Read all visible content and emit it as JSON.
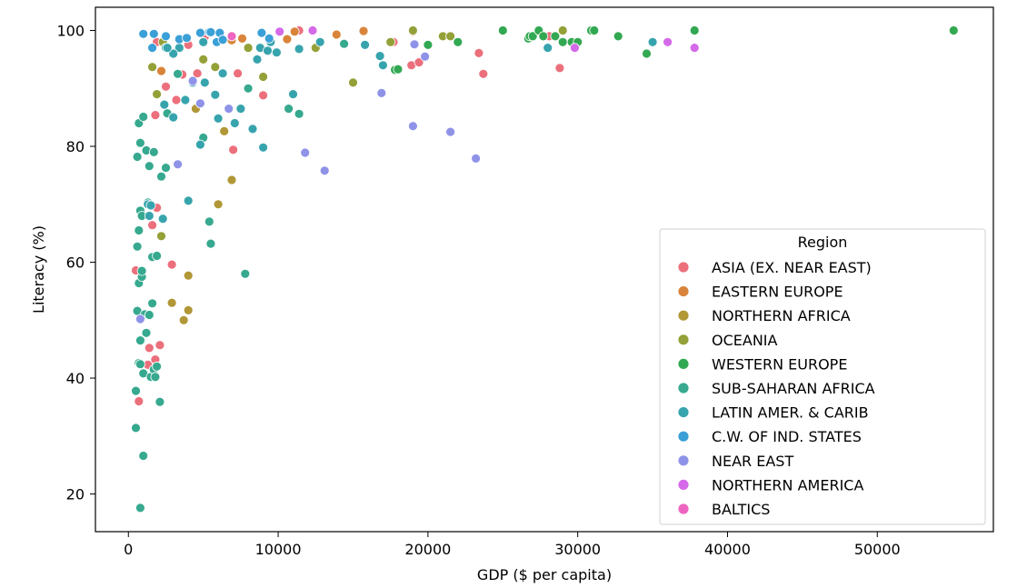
{
  "chart_data": {
    "type": "scatter",
    "title": "",
    "xlabel": "GDP ($ per capita)",
    "ylabel": "Literacy (%)",
    "xlim": [
      -2200,
      57750
    ],
    "ylim": [
      13.5,
      104.0
    ],
    "xticks": [
      0,
      10000,
      20000,
      30000,
      40000,
      50000
    ],
    "yticks": [
      20,
      40,
      60,
      80,
      100
    ],
    "grid": false,
    "legend": {
      "title": "Region",
      "placement": "lower-right"
    },
    "series": [
      {
        "name": "ASIA (EX. NEAR EAST)",
        "color": "#ec6f7c",
        "points": [
          [
            500,
            58.6
          ],
          [
            700,
            36.0
          ],
          [
            1300,
            42.3
          ],
          [
            1400,
            45.2
          ],
          [
            1600,
            66.4
          ],
          [
            1800,
            43.2
          ],
          [
            1800,
            85.4
          ],
          [
            1900,
            69.4
          ],
          [
            2100,
            45.7
          ],
          [
            2500,
            90.3
          ],
          [
            2900,
            59.6
          ],
          [
            3200,
            88.0
          ],
          [
            3600,
            92.4
          ],
          [
            4000,
            97.5
          ],
          [
            4600,
            92.6
          ],
          [
            5100,
            98.9
          ],
          [
            7000,
            79.4
          ],
          [
            7300,
            92.6
          ],
          [
            9000,
            88.8
          ],
          [
            11400,
            100.0
          ],
          [
            17700,
            98.0
          ],
          [
            18900,
            94.0
          ],
          [
            19400,
            94.5
          ],
          [
            23400,
            96.1
          ],
          [
            23700,
            92.5
          ],
          [
            28100,
            99.0
          ],
          [
            28800,
            93.5
          ],
          [
            1900,
            98.0
          ]
        ]
      },
      {
        "name": "EASTERN EUROPE",
        "color": "#d9843a",
        "points": [
          [
            4500,
            86.6
          ],
          [
            7600,
            98.6
          ],
          [
            10600,
            98.5
          ],
          [
            11100,
            99.8
          ],
          [
            13900,
            99.3
          ],
          [
            15700,
            99.9
          ],
          [
            19000,
            99.8
          ],
          [
            2200,
            93.0
          ],
          [
            6900,
            98.3
          ]
        ]
      },
      {
        "name": "NORTHERN AFRICA",
        "color": "#b19736",
        "points": [
          [
            3700,
            50.0
          ],
          [
            4000,
            51.7
          ],
          [
            4000,
            57.7
          ],
          [
            6000,
            70.0
          ],
          [
            6400,
            82.6
          ],
          [
            6900,
            74.2
          ],
          [
            2900,
            53.0
          ],
          [
            4500,
            86.5
          ]
        ]
      },
      {
        "name": "OCEANIA",
        "color": "#94a038",
        "points": [
          [
            1600,
            93.7
          ],
          [
            1900,
            89.0
          ],
          [
            2200,
            64.5
          ],
          [
            2300,
            98.0
          ],
          [
            5000,
            95.0
          ],
          [
            5800,
            93.7
          ],
          [
            8000,
            97.0
          ],
          [
            9000,
            92.0
          ],
          [
            12500,
            97.0
          ],
          [
            15000,
            91.0
          ],
          [
            17500,
            98.0
          ],
          [
            19000,
            100.0
          ],
          [
            21000,
            99.0
          ],
          [
            21500,
            99.0
          ],
          [
            29000,
            100.0
          ]
        ]
      },
      {
        "name": "WESTERN EUROPE",
        "color": "#33a852",
        "points": [
          [
            17800,
            93.2
          ],
          [
            18000,
            93.3
          ],
          [
            20000,
            97.5
          ],
          [
            22000,
            98.0
          ],
          [
            25000,
            100.0
          ],
          [
            26700,
            98.6
          ],
          [
            26800,
            99.0
          ],
          [
            27000,
            99.0
          ],
          [
            27400,
            100.0
          ],
          [
            27700,
            99.0
          ],
          [
            28500,
            99.0
          ],
          [
            29000,
            98.0
          ],
          [
            29600,
            98.0
          ],
          [
            30000,
            98.0
          ],
          [
            30900,
            100.0
          ],
          [
            31100,
            100.0
          ],
          [
            32700,
            99.0
          ],
          [
            34600,
            96.0
          ],
          [
            37800,
            100.0
          ],
          [
            55100,
            100.0
          ]
        ]
      },
      {
        "name": "SUB-SAHARAN AFRICA",
        "color": "#36a98f",
        "points": [
          [
            500,
            31.4
          ],
          [
            500,
            37.8
          ],
          [
            600,
            51.6
          ],
          [
            600,
            62.7
          ],
          [
            600,
            78.2
          ],
          [
            700,
            65.5
          ],
          [
            700,
            84.0
          ],
          [
            700,
            42.6
          ],
          [
            700,
            56.4
          ],
          [
            800,
            17.6
          ],
          [
            800,
            42.4
          ],
          [
            800,
            68.9
          ],
          [
            800,
            80.6
          ],
          [
            800,
            46.5
          ],
          [
            900,
            68.0
          ],
          [
            900,
            57.5
          ],
          [
            1000,
            85.1
          ],
          [
            1000,
            26.6
          ],
          [
            1000,
            40.8
          ],
          [
            1100,
            51.0
          ],
          [
            1200,
            79.3
          ],
          [
            1200,
            47.8
          ],
          [
            1300,
            70.3
          ],
          [
            1400,
            76.6
          ],
          [
            1400,
            50.9
          ],
          [
            1500,
            40.2
          ],
          [
            1600,
            52.9
          ],
          [
            1600,
            60.9
          ],
          [
            1700,
            79.0
          ],
          [
            1700,
            41.5
          ],
          [
            1800,
            40.2
          ],
          [
            1900,
            61.1
          ],
          [
            1900,
            42.0
          ],
          [
            2100,
            35.9
          ],
          [
            2200,
            74.8
          ],
          [
            2500,
            76.3
          ],
          [
            3300,
            92.5
          ],
          [
            5400,
            67.0
          ],
          [
            5500,
            63.2
          ],
          [
            7800,
            58.0
          ],
          [
            8000,
            90.0
          ],
          [
            10700,
            86.5
          ],
          [
            11400,
            85.6
          ],
          [
            14400,
            97.7
          ],
          [
            5000,
            81.5
          ],
          [
            2600,
            85.7
          ],
          [
            900,
            58.5
          ]
        ]
      },
      {
        "name": "LATIN AMER. & CARIB",
        "color": "#37a4ad",
        "points": [
          [
            1300,
            70.0
          ],
          [
            1400,
            68.0
          ],
          [
            1500,
            69.8
          ],
          [
            2300,
            67.5
          ],
          [
            2400,
            87.2
          ],
          [
            2500,
            97.0
          ],
          [
            3000,
            85.0
          ],
          [
            3400,
            97.0
          ],
          [
            3800,
            88.0
          ],
          [
            4000,
            70.6
          ],
          [
            4300,
            91.0
          ],
          [
            4800,
            80.3
          ],
          [
            5000,
            98.0
          ],
          [
            5100,
            91.0
          ],
          [
            5800,
            88.9
          ],
          [
            6000,
            84.8
          ],
          [
            6300,
            92.6
          ],
          [
            7100,
            84.0
          ],
          [
            7500,
            86.5
          ],
          [
            8300,
            83.0
          ],
          [
            8600,
            95.0
          ],
          [
            8800,
            97.0
          ],
          [
            9000,
            79.8
          ],
          [
            9500,
            98.0
          ],
          [
            9900,
            96.2
          ],
          [
            11000,
            89.0
          ],
          [
            11400,
            96.8
          ],
          [
            12800,
            98.0
          ],
          [
            15800,
            97.5
          ],
          [
            16800,
            95.6
          ],
          [
            17000,
            94.0
          ],
          [
            28000,
            97.0
          ],
          [
            35000,
            98.0
          ],
          [
            3000,
            96.0
          ],
          [
            2600,
            97.0
          ],
          [
            9300,
            96.5
          ]
        ]
      },
      {
        "name": "C.W. OF IND. STATES",
        "color": "#3aa0d7",
        "points": [
          [
            1000,
            99.4
          ],
          [
            1600,
            97.0
          ],
          [
            1700,
            99.4
          ],
          [
            2500,
            99.0
          ],
          [
            3400,
            98.5
          ],
          [
            3900,
            98.7
          ],
          [
            4800,
            99.6
          ],
          [
            5400,
            99.7
          ],
          [
            5500,
            99.7
          ],
          [
            5900,
            98.0
          ],
          [
            6100,
            99.6
          ],
          [
            6300,
            98.4
          ],
          [
            8900,
            99.6
          ],
          [
            9400,
            98.6
          ]
        ]
      },
      {
        "name": "NEAR EAST",
        "color": "#8f93e8",
        "points": [
          [
            800,
            50.2
          ],
          [
            3300,
            76.9
          ],
          [
            4300,
            91.3
          ],
          [
            4800,
            87.4
          ],
          [
            6700,
            86.5
          ],
          [
            11800,
            78.9
          ],
          [
            13100,
            75.8
          ],
          [
            16900,
            89.2
          ],
          [
            19000,
            83.5
          ],
          [
            19100,
            97.6
          ],
          [
            19800,
            95.5
          ],
          [
            21500,
            82.5
          ],
          [
            23200,
            77.9
          ]
        ]
      },
      {
        "name": "NORTHERN AMERICA",
        "color": "#d46ae8",
        "points": [
          [
            10100,
            99.8
          ],
          [
            12300,
            100.0
          ],
          [
            29800,
            97.0
          ],
          [
            36000,
            98.0
          ],
          [
            37800,
            97.0
          ]
        ]
      },
      {
        "name": "BALTICS",
        "color": "#ee65c0",
        "points": [
          [
            6900,
            99.0
          ]
        ]
      }
    ]
  }
}
